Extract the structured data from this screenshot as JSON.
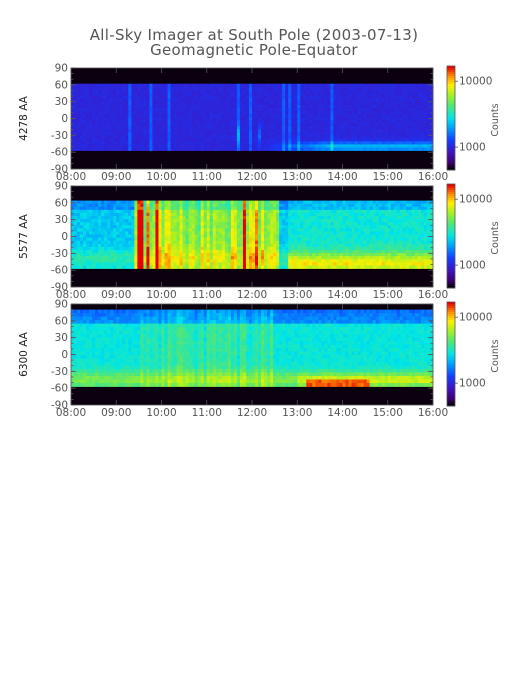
{
  "chart_data": {
    "type": "heatmap",
    "title": "All-Sky Imager at South Pole (2003-07-13)",
    "subtitle": "Geomagnetic Pole-Equator",
    "x_ticks": [
      "08:00",
      "09:00",
      "10:00",
      "11:00",
      "12:00",
      "13:00",
      "14:00",
      "15:00",
      "16:00"
    ],
    "x_range": [
      "08:00",
      "16:00"
    ],
    "y_ticks": [
      "90",
      "60",
      "30",
      "0",
      "-30",
      "-60",
      "-90"
    ],
    "y_range": [
      -90,
      90
    ],
    "colorbar": {
      "label": "Counts",
      "ticks": [
        "10000",
        "1000"
      ],
      "scale": "log"
    },
    "panels": [
      {
        "ylabel": "4278 AA",
        "valid_range": [
          -57,
          62
        ],
        "profile": "low"
      },
      {
        "ylabel": "5577 AA",
        "valid_range": [
          -57,
          64
        ],
        "profile": "mid"
      },
      {
        "ylabel": "6300 AA",
        "valid_range": [
          -57,
          80
        ],
        "profile": "high"
      }
    ]
  }
}
